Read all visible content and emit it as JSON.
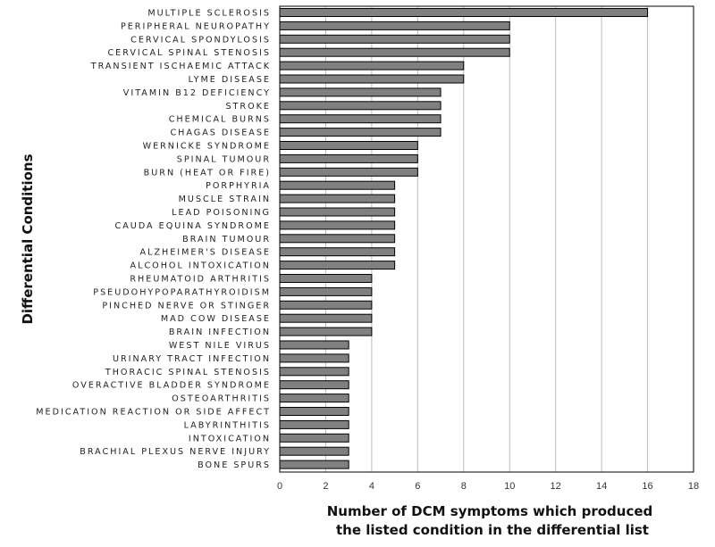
{
  "chart_data": {
    "type": "bar",
    "orientation": "horizontal",
    "categories": [
      "MULTIPLE SCLEROSIS",
      "PERIPHERAL NEUROPATHY",
      "CERVICAL SPONDYLOSIS",
      "CERVICAL SPINAL STENOSIS",
      "TRANSIENT ISCHAEMIC ATTACK",
      "LYME DISEASE",
      "VITAMIN B12 DEFICIENCY",
      "STROKE",
      "CHEMICAL BURNS",
      "CHAGAS DISEASE",
      "WERNICKE SYNDROME",
      "SPINAL TUMOUR",
      "BURN (HEAT OR FIRE)",
      "PORPHYRIA",
      "MUSCLE STRAIN",
      "LEAD POISONING",
      "CAUDA EQUINA SYNDROME",
      "BRAIN TUMOUR",
      "ALZHEIMER'S DISEASE",
      "ALCOHOL INTOXICATION",
      "RHEUMATOID ARTHRITIS",
      "PSEUDOHYPOPARATHYROIDISM",
      "PINCHED NERVE OR STINGER",
      "MAD COW DISEASE",
      "BRAIN INFECTION",
      "WEST NILE VIRUS",
      "URINARY TRACT INFECTION",
      "THORACIC SPINAL STENOSIS",
      "OVERACTIVE BLADDER SYNDROME",
      "OSTEOARTHRITIS",
      "MEDICATION REACTION OR SIDE AFFECT",
      "LABYRINTHITIS",
      "INTOXICATION",
      "BRACHIAL PLEXUS NERVE INJURY",
      "BONE SPURS"
    ],
    "values": [
      16,
      10,
      10,
      10,
      8,
      8,
      7,
      7,
      7,
      7,
      6,
      6,
      6,
      5,
      5,
      5,
      5,
      5,
      5,
      5,
      4,
      4,
      4,
      4,
      4,
      3,
      3,
      3,
      3,
      3,
      3,
      3,
      3,
      3,
      3
    ],
    "xlabel_lines": [
      "Number of DCM symptoms which produced",
      "the listed condition in the differential list"
    ],
    "ylabel": "Differential Conditions",
    "xlim": [
      0,
      18
    ],
    "xticks": [
      "0",
      "2",
      "4",
      "6",
      "8",
      "10",
      "12",
      "14",
      "16",
      "18"
    ],
    "grid": "vertical",
    "bar_color": "#808080",
    "bar_edge_color": "#000000",
    "grid_color": "#bdbdbd"
  }
}
